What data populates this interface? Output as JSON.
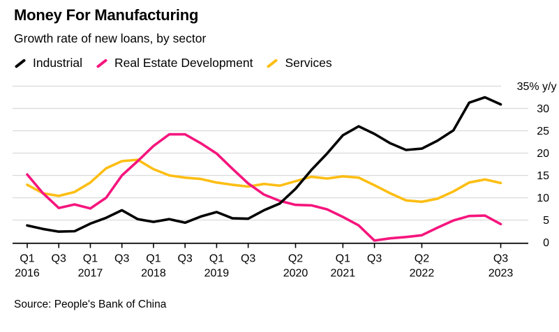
{
  "header": {
    "title": "Money For Manufacturing",
    "subtitle": "Growth rate of new loans, by sector"
  },
  "source": "Source: People's Bank of China",
  "colors": {
    "industrial": "#000000",
    "real_estate": "#F5157D",
    "services": "#FDBE14",
    "grid": "#DADADA",
    "axis": "#000000",
    "background": "#FFFFFF"
  },
  "chart_data": {
    "type": "line",
    "title": "Money For Manufacturing",
    "subtitle": "Growth rate of new loans, by sector",
    "unit_label": "35% y/y",
    "ylabel": "% y/y",
    "ylim": [
      0,
      35
    ],
    "y_ticks": [
      0,
      5,
      10,
      15,
      20,
      25,
      30,
      35
    ],
    "grid": "horizontal",
    "legend_position": "top",
    "x": [
      "Q1 2016",
      "Q2 2016",
      "Q3 2016",
      "Q4 2016",
      "Q1 2017",
      "Q2 2017",
      "Q3 2017",
      "Q4 2017",
      "Q1 2018",
      "Q2 2018",
      "Q3 2018",
      "Q4 2018",
      "Q1 2019",
      "Q2 2019",
      "Q3 2019",
      "Q4 2019",
      "Q1 2020",
      "Q2 2020",
      "Q3 2020",
      "Q4 2020",
      "Q1 2021",
      "Q2 2021",
      "Q3 2021",
      "Q4 2021",
      "Q1 2022",
      "Q2 2022",
      "Q3 2022",
      "Q4 2022",
      "Q1 2023",
      "Q2 2023",
      "Q3 2023"
    ],
    "x_axis_ticks": [
      {
        "index": 0,
        "quarter": "Q1",
        "year": "2016"
      },
      {
        "index": 2,
        "quarter": "Q3",
        "year": ""
      },
      {
        "index": 4,
        "quarter": "Q1",
        "year": "2017"
      },
      {
        "index": 6,
        "quarter": "Q3",
        "year": ""
      },
      {
        "index": 8,
        "quarter": "Q1",
        "year": "2018"
      },
      {
        "index": 10,
        "quarter": "Q3",
        "year": ""
      },
      {
        "index": 12,
        "quarter": "Q1",
        "year": "2019"
      },
      {
        "index": 14,
        "quarter": "Q3",
        "year": ""
      },
      {
        "index": 17,
        "quarter": "Q2",
        "year": "2020"
      },
      {
        "index": 20,
        "quarter": "Q1",
        "year": "2021"
      },
      {
        "index": 22,
        "quarter": "Q3",
        "year": ""
      },
      {
        "index": 25,
        "quarter": "Q2",
        "year": "2022"
      },
      {
        "index": 30,
        "quarter": "Q3",
        "year": "2023"
      }
    ],
    "series": [
      {
        "name": "Industrial",
        "color": "#000000",
        "values": [
          3.8,
          3.0,
          2.4,
          2.5,
          4.2,
          5.5,
          7.2,
          5.2,
          4.6,
          5.2,
          4.4,
          5.8,
          6.8,
          5.4,
          5.3,
          7.2,
          8.7,
          12.0,
          16.2,
          19.9,
          24.0,
          26.0,
          24.3,
          22.2,
          20.7,
          21.0,
          22.8,
          25.1,
          31.3,
          32.5,
          30.9
        ]
      },
      {
        "name": "Real Estate Development",
        "color": "#F5157D",
        "values": [
          15.2,
          11.0,
          7.7,
          8.5,
          7.6,
          10.0,
          15.0,
          18.2,
          21.6,
          24.2,
          24.2,
          22.2,
          19.9,
          16.5,
          13.2,
          10.7,
          9.3,
          8.4,
          8.3,
          7.4,
          5.7,
          3.8,
          0.4,
          0.9,
          1.2,
          1.6,
          3.3,
          4.9,
          5.9,
          6.0,
          4.1
        ]
      },
      {
        "name": "Services",
        "color": "#FDBE14",
        "values": [
          12.9,
          11.0,
          10.4,
          11.3,
          13.4,
          16.6,
          18.2,
          18.5,
          16.4,
          15.0,
          14.5,
          14.2,
          13.4,
          12.9,
          12.5,
          13.1,
          12.7,
          13.7,
          14.7,
          14.3,
          14.8,
          14.5,
          12.8,
          11.0,
          9.4,
          9.1,
          9.8,
          11.4,
          13.4,
          14.1,
          13.3
        ]
      }
    ]
  }
}
